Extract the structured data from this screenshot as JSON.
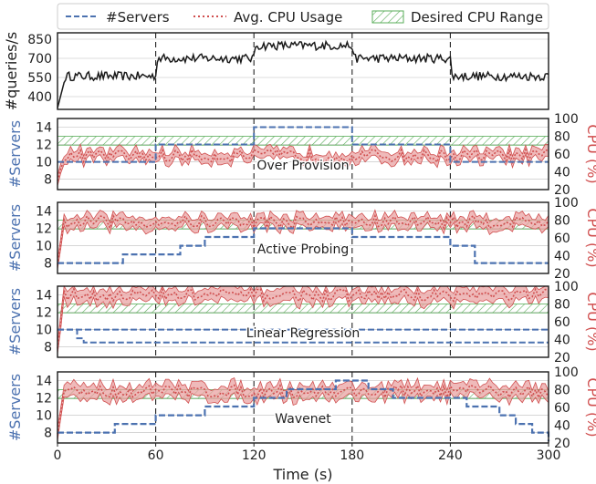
{
  "colors": {
    "servers": "#4c72b0",
    "cpu": "#d04e4e",
    "cpu_fill": "#e9a3a3",
    "desired": "#5aad5a",
    "query_line": "#1a1a1a"
  },
  "legend": [
    {
      "label": "#Servers",
      "style": "dashed-blue"
    },
    {
      "label": "Avg. CPU Usage",
      "style": "dotted-red"
    },
    {
      "label": "Desired CPU Range",
      "style": "hatched-green"
    }
  ],
  "chart_data": [
    {
      "type": "line",
      "name": "queries",
      "ylabel": "#queries/s",
      "xlim": [
        0,
        300
      ],
      "ylim": [
        300,
        900
      ],
      "yticks": [
        400,
        550,
        700,
        850
      ],
      "segments": [
        {
          "x": [
            0,
            60
          ],
          "level": 560
        },
        {
          "x": [
            60,
            120
          ],
          "level": 700
        },
        {
          "x": [
            120,
            180
          ],
          "level": 800
        },
        {
          "x": [
            180,
            240
          ],
          "level": 700
        },
        {
          "x": [
            240,
            300
          ],
          "level": 560
        }
      ],
      "warmup": {
        "x": [
          0,
          5
        ],
        "from": 310
      }
    },
    {
      "type": "line",
      "label": "Over Provision",
      "ylabel_left": "#Servers",
      "ylabel_right": "CPU (%)",
      "ylim_left": [
        6.8,
        15
      ],
      "yticks_left": [
        8,
        10,
        12,
        14
      ],
      "ylim_right": [
        20,
        100
      ],
      "yticks_right": [
        20,
        40,
        60,
        80,
        100
      ],
      "desired_range": [
        70,
        80
      ],
      "servers": [
        {
          "x": 0,
          "y": 10
        },
        {
          "x": 60,
          "y": 12
        },
        {
          "x": 120,
          "y": 14
        },
        {
          "x": 180,
          "y": 12
        },
        {
          "x": 240,
          "y": 10
        },
        {
          "x": 300,
          "y": 10
        }
      ],
      "cpu_mean": 58,
      "cpu_band": 4
    },
    {
      "type": "line",
      "label": "Active Probing",
      "ylabel_left": "#Servers",
      "ylabel_right": "CPU (%)",
      "ylim_left": [
        6.8,
        15
      ],
      "yticks_left": [
        8,
        10,
        12,
        14
      ],
      "ylim_right": [
        20,
        100
      ],
      "yticks_right": [
        20,
        40,
        60,
        80,
        100
      ],
      "desired_range": [
        70,
        80
      ],
      "servers": [
        {
          "x": 0,
          "y": 8
        },
        {
          "x": 40,
          "y": 9
        },
        {
          "x": 60,
          "y": 9
        },
        {
          "x": 75,
          "y": 10
        },
        {
          "x": 90,
          "y": 11
        },
        {
          "x": 120,
          "y": 12
        },
        {
          "x": 180,
          "y": 11
        },
        {
          "x": 200,
          "y": 11
        },
        {
          "x": 240,
          "y": 10
        },
        {
          "x": 255,
          "y": 8
        },
        {
          "x": 300,
          "y": 8
        }
      ],
      "cpu_mean": 78,
      "cpu_band": 5
    },
    {
      "type": "line",
      "label": "Linear Regression",
      "ylabel_left": "#Servers",
      "ylabel_right": "CPU (%)",
      "ylim_left": [
        6.8,
        15
      ],
      "yticks_left": [
        8,
        10,
        12,
        14
      ],
      "ylim_right": [
        20,
        100
      ],
      "yticks_right": [
        20,
        40,
        60,
        80,
        100
      ],
      "desired_range": [
        70,
        80
      ],
      "servers": [
        {
          "x": 0,
          "y": 10
        },
        {
          "x": 300,
          "y": 10
        }
      ],
      "servers_second": [
        {
          "x": 0,
          "y": 10
        },
        {
          "x": 12,
          "y": 9
        },
        {
          "x": 16,
          "y": 8.5
        },
        {
          "x": 300,
          "y": 8.5
        }
      ],
      "cpu_mean": 90,
      "cpu_band": 6
    },
    {
      "type": "line",
      "label": "Wavenet",
      "ylabel_left": "#Servers",
      "ylabel_right": "CPU (%)",
      "ylim_left": [
        6.8,
        15
      ],
      "yticks_left": [
        8,
        10,
        12,
        14
      ],
      "ylim_right": [
        20,
        100
      ],
      "yticks_right": [
        20,
        40,
        60,
        80,
        100
      ],
      "desired_range": [
        70,
        80
      ],
      "servers": [
        {
          "x": 0,
          "y": 8
        },
        {
          "x": 25,
          "y": 8
        },
        {
          "x": 35,
          "y": 9
        },
        {
          "x": 60,
          "y": 10
        },
        {
          "x": 75,
          "y": 10
        },
        {
          "x": 90,
          "y": 11
        },
        {
          "x": 105,
          "y": 11
        },
        {
          "x": 120,
          "y": 12
        },
        {
          "x": 140,
          "y": 13
        },
        {
          "x": 170,
          "y": 14
        },
        {
          "x": 190,
          "y": 13
        },
        {
          "x": 205,
          "y": 12
        },
        {
          "x": 230,
          "y": 12
        },
        {
          "x": 250,
          "y": 11
        },
        {
          "x": 270,
          "y": 10
        },
        {
          "x": 280,
          "y": 9
        },
        {
          "x": 290,
          "y": 8
        },
        {
          "x": 300,
          "y": 7
        }
      ],
      "cpu_mean": 78,
      "cpu_band": 6
    }
  ],
  "x_axis": {
    "label": "Time (s)",
    "ticks": [
      0,
      60,
      120,
      180,
      240,
      300
    ]
  }
}
